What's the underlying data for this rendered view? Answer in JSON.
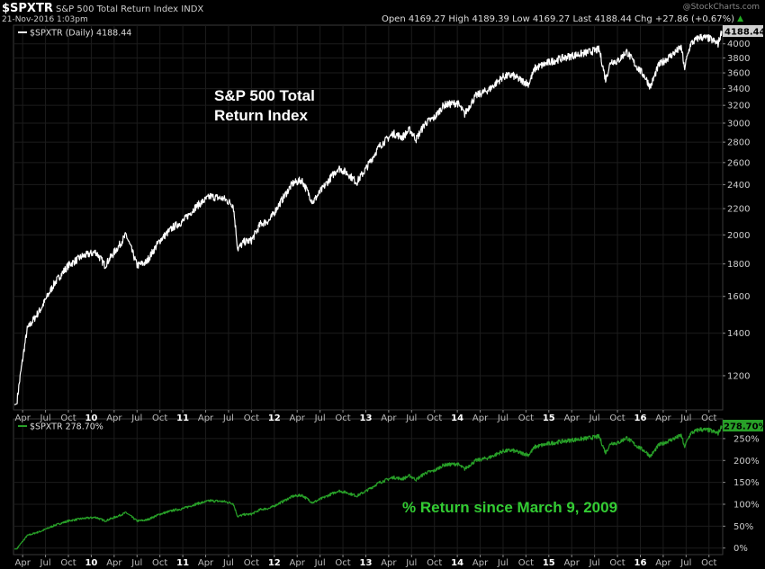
{
  "header": {
    "symbol": "$SPXTR",
    "name": "S&P 500 Total Return Index",
    "exchange": "INDX",
    "date": "21-Nov-2016 1:03pm",
    "watermark": "@StockCharts.com",
    "quote_line": "Open 4169.27  High 4189.39  Low 4169.27  Last 4188.44  Chg +27.86 (+0.67%)",
    "up_arrow": "▲"
  },
  "chart_data": [
    {
      "type": "line",
      "title": "S&P 500 Total Return Index",
      "legend": "$SPXTR (Daily) 4188.44",
      "last_label": "4188.44",
      "annotation": [
        "S&P 500 Total",
        "Return Index"
      ],
      "scale": "log",
      "ylim": [
        1060,
        4280
      ],
      "yticks": [
        1200,
        1400,
        1600,
        1800,
        2000,
        2200,
        2400,
        2600,
        2800,
        3000,
        3200,
        3400,
        3600,
        3800,
        4000
      ],
      "x": [
        2009.19,
        2009.3,
        2009.45,
        2009.6,
        2009.75,
        2009.9,
        2010.05,
        2010.15,
        2010.3,
        2010.38,
        2010.5,
        2010.6,
        2010.75,
        2010.9,
        2011.0,
        2011.15,
        2011.3,
        2011.45,
        2011.55,
        2011.6,
        2011.67,
        2011.75,
        2011.85,
        2011.95,
        2012.05,
        2012.2,
        2012.3,
        2012.42,
        2012.55,
        2012.7,
        2012.8,
        2012.9,
        2013.0,
        2013.15,
        2013.3,
        2013.4,
        2013.48,
        2013.55,
        2013.65,
        2013.75,
        2013.85,
        2014.0,
        2014.08,
        2014.2,
        2014.35,
        2014.5,
        2014.6,
        2014.7,
        2014.78,
        2014.85,
        2015.0,
        2015.1,
        2015.25,
        2015.4,
        2015.55,
        2015.62,
        2015.68,
        2015.75,
        2015.85,
        2015.95,
        2016.05,
        2016.11,
        2016.2,
        2016.35,
        2016.45,
        2016.48,
        2016.55,
        2016.65,
        2016.75,
        2016.85,
        2016.89
      ],
      "values": [
        1100,
        1420,
        1530,
        1680,
        1790,
        1850,
        1880,
        1790,
        1920,
        2000,
        1790,
        1810,
        1960,
        2060,
        2100,
        2220,
        2300,
        2280,
        2230,
        1900,
        1950,
        1960,
        2080,
        2110,
        2230,
        2410,
        2440,
        2250,
        2390,
        2550,
        2500,
        2420,
        2540,
        2760,
        2890,
        2850,
        2930,
        2830,
        3000,
        3060,
        3200,
        3230,
        3100,
        3310,
        3390,
        3550,
        3570,
        3500,
        3460,
        3660,
        3740,
        3780,
        3830,
        3870,
        3920,
        3510,
        3760,
        3750,
        3890,
        3700,
        3550,
        3420,
        3700,
        3850,
        3950,
        3650,
        4000,
        4100,
        4080,
        4000,
        4188.44
      ]
    },
    {
      "type": "line",
      "title": "% Return since March 9, 2009",
      "legend": "$SPXTR 278.70%",
      "last_label": "278.70%",
      "annotation": "% Return since March 9, 2009",
      "ylim": [
        -15,
        295
      ],
      "yticks": [
        0,
        50,
        100,
        150,
        200,
        250
      ],
      "ytick_labels": [
        "0%",
        "50%",
        "100%",
        "150%",
        "200%",
        "250%"
      ],
      "series_color": "#28a028"
    }
  ],
  "x_axis": {
    "start": 2009.15,
    "end": 2016.9,
    "ticks": [
      {
        "t": 2009.25,
        "label": "Apr",
        "bold": false
      },
      {
        "t": 2009.5,
        "label": "Jul",
        "bold": false
      },
      {
        "t": 2009.75,
        "label": "Oct",
        "bold": false
      },
      {
        "t": 2010.0,
        "label": "10",
        "bold": true
      },
      {
        "t": 2010.25,
        "label": "Apr",
        "bold": false
      },
      {
        "t": 2010.5,
        "label": "Jul",
        "bold": false
      },
      {
        "t": 2010.75,
        "label": "Oct",
        "bold": false
      },
      {
        "t": 2011.0,
        "label": "11",
        "bold": true
      },
      {
        "t": 2011.25,
        "label": "Apr",
        "bold": false
      },
      {
        "t": 2011.5,
        "label": "Jul",
        "bold": false
      },
      {
        "t": 2011.75,
        "label": "Oct",
        "bold": false
      },
      {
        "t": 2012.0,
        "label": "12",
        "bold": true
      },
      {
        "t": 2012.25,
        "label": "Apr",
        "bold": false
      },
      {
        "t": 2012.5,
        "label": "Jul",
        "bold": false
      },
      {
        "t": 2012.75,
        "label": "Oct",
        "bold": false
      },
      {
        "t": 2013.0,
        "label": "13",
        "bold": true
      },
      {
        "t": 2013.25,
        "label": "Apr",
        "bold": false
      },
      {
        "t": 2013.5,
        "label": "Jul",
        "bold": false
      },
      {
        "t": 2013.75,
        "label": "Oct",
        "bold": false
      },
      {
        "t": 2014.0,
        "label": "14",
        "bold": true
      },
      {
        "t": 2014.25,
        "label": "Apr",
        "bold": false
      },
      {
        "t": 2014.5,
        "label": "Jul",
        "bold": false
      },
      {
        "t": 2014.75,
        "label": "Oct",
        "bold": false
      },
      {
        "t": 2015.0,
        "label": "15",
        "bold": true
      },
      {
        "t": 2015.25,
        "label": "Apr",
        "bold": false
      },
      {
        "t": 2015.5,
        "label": "Jul",
        "bold": false
      },
      {
        "t": 2015.75,
        "label": "Oct",
        "bold": false
      },
      {
        "t": 2016.0,
        "label": "16",
        "bold": true
      },
      {
        "t": 2016.25,
        "label": "Apr",
        "bold": false
      },
      {
        "t": 2016.5,
        "label": "Jul",
        "bold": false
      },
      {
        "t": 2016.75,
        "label": "Oct",
        "bold": false
      }
    ]
  },
  "colors": {
    "background": "#000000",
    "price_line": "#ffffff",
    "return_line": "#28a028",
    "annotation_green": "#33cc33",
    "grid": "#1c1c1c"
  }
}
